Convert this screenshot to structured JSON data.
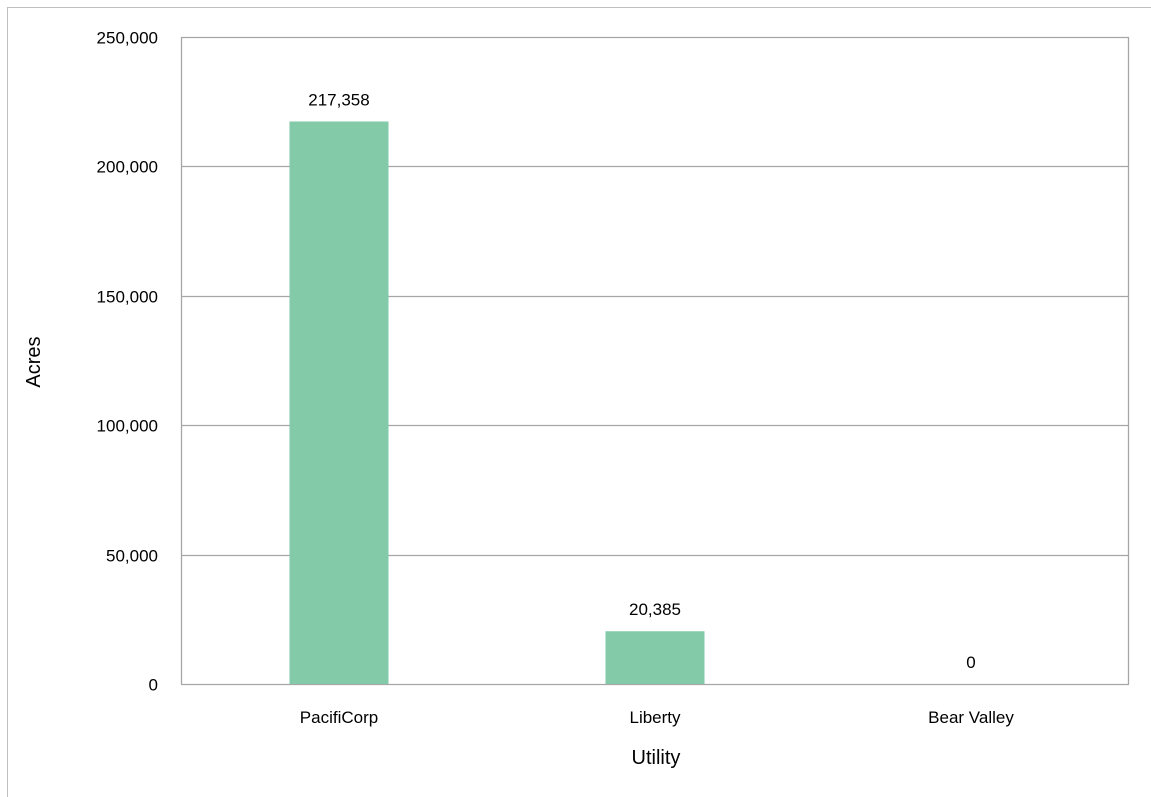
{
  "chart_data": {
    "type": "bar",
    "categories": [
      "PacifiCorp",
      "Liberty",
      "Bear Valley"
    ],
    "values": [
      217358,
      20385,
      0
    ],
    "data_labels": [
      "217,358",
      "20,385",
      "0"
    ],
    "xlabel": "Utility",
    "ylabel": "Acres",
    "ylim": [
      0,
      250000
    ],
    "yticks": [
      0,
      50000,
      100000,
      150000,
      200000,
      250000
    ],
    "ytick_labels": [
      "0",
      "50,000",
      "100,000",
      "150,000",
      "200,000",
      "250,000"
    ],
    "grid": true,
    "legend": "none",
    "bar_color": "#82caa8",
    "grid_color": "#a6a6a6"
  }
}
